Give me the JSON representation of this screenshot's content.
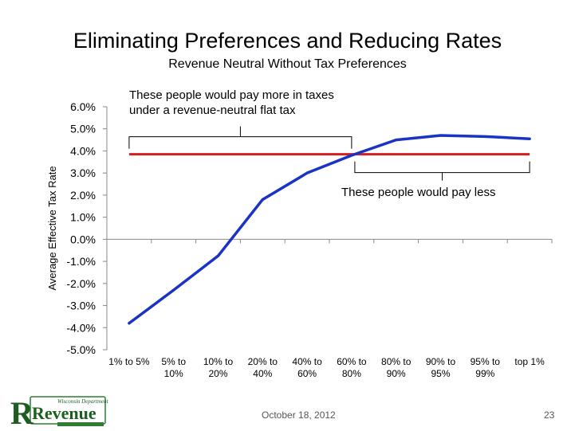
{
  "slide": {
    "title": "Eliminating Preferences and Reducing Rates",
    "subtitle": "Revenue Neutral Without Tax Preferences",
    "date": "October 18, 2012",
    "page_number": "23",
    "logo": {
      "top_text": "Wisconsin Department of",
      "main_text": "Revenue"
    }
  },
  "annotations": {
    "pay_more_line1": "These people would pay more in taxes",
    "pay_more_line2": "under a revenue-neutral flat tax",
    "pay_less": "These people would pay less"
  },
  "colors": {
    "series": "#1a33c4",
    "flat_tax": "#d41f1f",
    "axis": "#888888"
  },
  "chart_data": {
    "type": "line",
    "ylabel": "Average Effective Tax Rate",
    "xlabel": "",
    "categories": [
      [
        "1% to 5%"
      ],
      [
        "5% to",
        "10%"
      ],
      [
        "10% to",
        "20%"
      ],
      [
        "20% to",
        "40%"
      ],
      [
        "40% to",
        "60%"
      ],
      [
        "60% to",
        "80%"
      ],
      [
        "80% to",
        "90%"
      ],
      [
        "90% to",
        "95%"
      ],
      [
        "95% to",
        "99%"
      ],
      [
        "top 1%"
      ]
    ],
    "series": [
      {
        "values": [
          -3.8,
          -2.3,
          -0.75,
          1.8,
          3.0,
          3.8,
          4.5,
          4.7,
          4.65,
          4.55
        ]
      }
    ],
    "reference_line": {
      "value": 3.85
    },
    "ylim": [
      -5.0,
      6.0
    ],
    "yticks": [
      6.0,
      5.0,
      4.0,
      3.0,
      2.0,
      1.0,
      0.0,
      -1.0,
      -2.0,
      -3.0,
      -4.0,
      -5.0
    ],
    "ytick_labels": [
      "6.0%",
      "5.0%",
      "4.0%",
      "3.0%",
      "2.0%",
      "1.0%",
      "0.0%",
      "-1.0%",
      "-2.0%",
      "-3.0%",
      "-4.0%",
      "-5.0%"
    ],
    "grid": false,
    "legend": "none"
  }
}
